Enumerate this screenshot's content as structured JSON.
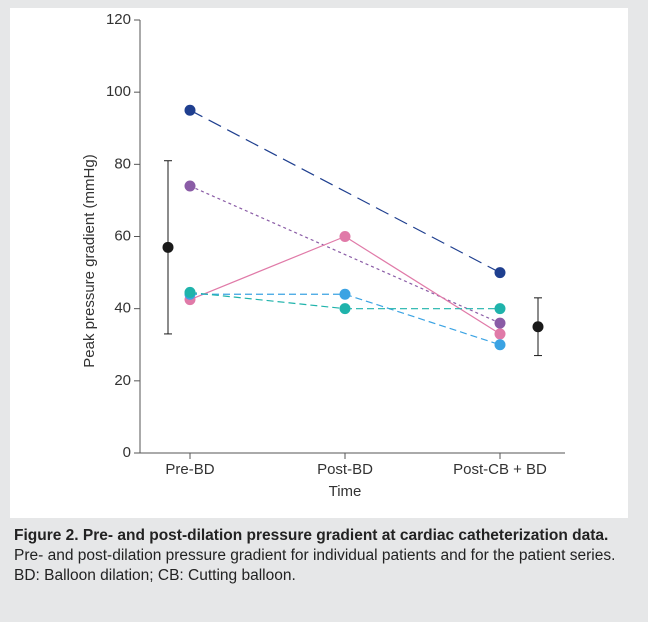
{
  "chart_data": {
    "type": "line",
    "ylabel": "Peak pressure gradient (mmHg)",
    "xlabel": "Time",
    "categories": [
      "Pre-BD",
      "Post-BD",
      "Post-CB + BD"
    ],
    "ylim": [
      0,
      120
    ],
    "yticks": [
      0,
      20,
      40,
      60,
      80,
      100,
      120
    ],
    "series": [
      {
        "color": "#1f3f8f",
        "dash": "long",
        "values": [
          95,
          null,
          50
        ]
      },
      {
        "color": "#8a5ca6",
        "dash": "dot",
        "values": [
          74,
          null,
          36
        ]
      },
      {
        "color": "#e07aa8",
        "dash": "solid",
        "values": [
          42.5,
          60,
          33
        ]
      },
      {
        "color": "#3ba3e3",
        "dash": "short",
        "values": [
          44,
          44,
          30
        ]
      },
      {
        "color": "#1fb3ab",
        "dash": "short",
        "values": [
          44.5,
          40,
          40
        ]
      }
    ],
    "summary": {
      "color": "#1a1a1a",
      "values": [
        57,
        null,
        35
      ],
      "errors": [
        24,
        null,
        8
      ]
    }
  },
  "caption": {
    "label": "Figure 2. Pre- and post-dilation pressure gradient at cardiac catheterization data.",
    "text": "Pre- and post-dilation pressure gradient for individual patients and for the patient series.",
    "note": "BD: Balloon dilation; CB: Cutting balloon."
  }
}
